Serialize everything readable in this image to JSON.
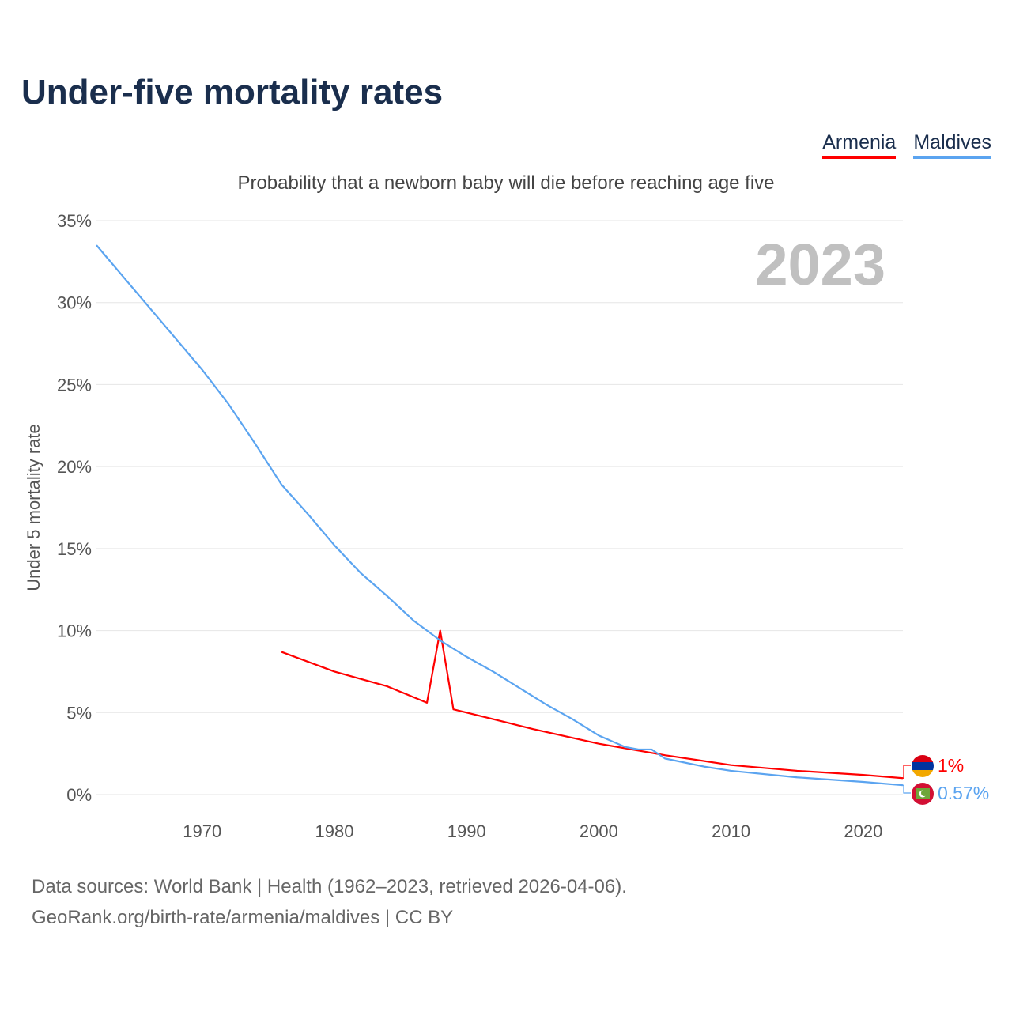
{
  "title": "Under-five mortality rates",
  "subtitle": "Probability that a newborn baby will die before reaching age five",
  "legend": [
    {
      "name": "Armenia",
      "color": "#ff0000"
    },
    {
      "name": "Maldives",
      "color": "#5ba4f0"
    }
  ],
  "footer": {
    "line1": "Data sources: World Bank | Health (1962–2023, retrieved 2026-04-06).",
    "line2": "GeoRank.org/birth-rate/armenia/maldives | CC BY"
  },
  "chart_data": {
    "type": "line",
    "title": "Under-five mortality rates",
    "ylabel": "Under 5 mortality rate",
    "year_label": "2023",
    "xlim": [
      1962,
      2023
    ],
    "ylim": [
      0,
      35
    ],
    "xticks": [
      1970,
      1980,
      1990,
      2000,
      2010,
      2020
    ],
    "yticks": [
      0,
      5,
      10,
      15,
      20,
      25,
      30,
      35
    ],
    "ytick_labels": [
      "0%",
      "5%",
      "10%",
      "15%",
      "20%",
      "25%",
      "30%",
      "35%"
    ],
    "series": [
      {
        "name": "Armenia",
        "color": "#ff0000",
        "end_label": "1%",
        "x": [
          1976,
          1980,
          1984,
          1987,
          1988,
          1989,
          1990,
          1995,
          2000,
          2005,
          2010,
          2015,
          2020,
          2023
        ],
        "y": [
          8.7,
          7.5,
          6.6,
          5.6,
          10.0,
          5.2,
          5.0,
          4.0,
          3.1,
          2.4,
          1.8,
          1.45,
          1.2,
          1.0
        ]
      },
      {
        "name": "Maldives",
        "color": "#5ba4f0",
        "end_label": "0.57%",
        "x": [
          1962,
          1964,
          1966,
          1968,
          1970,
          1972,
          1974,
          1976,
          1978,
          1980,
          1982,
          1984,
          1986,
          1988,
          1990,
          1992,
          1994,
          1996,
          1998,
          2000,
          2002,
          2003,
          2004,
          2005,
          2008,
          2010,
          2015,
          2020,
          2023
        ],
        "y": [
          33.5,
          31.6,
          29.7,
          27.8,
          25.9,
          23.8,
          21.4,
          18.9,
          17.1,
          15.2,
          13.5,
          12.1,
          10.6,
          9.4,
          8.4,
          7.5,
          6.5,
          5.5,
          4.6,
          3.6,
          2.9,
          2.75,
          2.75,
          2.2,
          1.7,
          1.45,
          1.05,
          0.77,
          0.57
        ]
      }
    ]
  }
}
